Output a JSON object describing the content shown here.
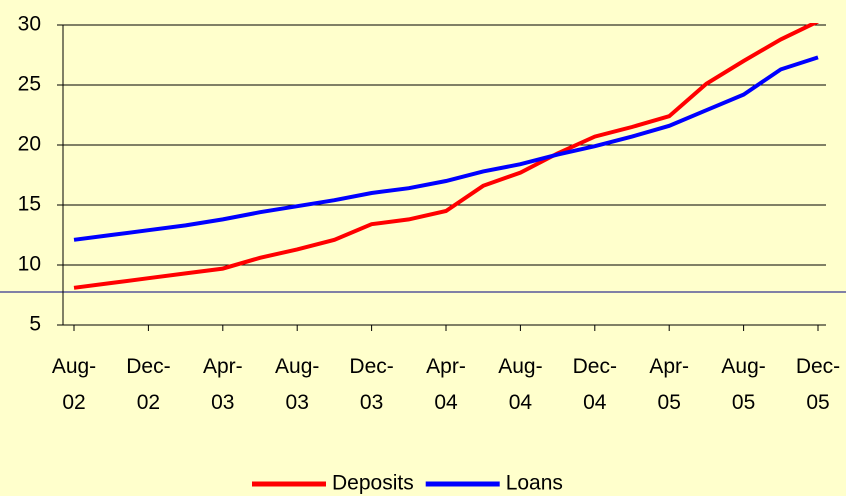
{
  "chart_data": {
    "type": "line",
    "categories": [
      "Aug-02",
      null,
      "Dec-02",
      null,
      "Apr-03",
      null,
      "Aug-03",
      null,
      "Dec-03",
      null,
      "Apr-04",
      null,
      "Aug-04",
      null,
      "Dec-04",
      null,
      "Apr-05",
      null,
      "Aug-05",
      null,
      "Dec-05"
    ],
    "series": [
      {
        "name": "Deposits",
        "color": "#ff0000",
        "values": [
          8.1,
          8.5,
          8.9,
          9.3,
          9.7,
          10.6,
          11.3,
          12.1,
          13.4,
          13.8,
          14.5,
          16.6,
          17.7,
          19.3,
          20.7,
          21.5,
          22.4,
          25.1,
          27.0,
          28.8,
          30.3
        ]
      },
      {
        "name": "Loans",
        "color": "#0000ff",
        "values": [
          12.1,
          12.5,
          12.9,
          13.3,
          13.8,
          14.4,
          14.9,
          15.4,
          16.0,
          16.4,
          17.0,
          17.8,
          18.4,
          19.2,
          19.9,
          20.7,
          21.6,
          22.9,
          24.2,
          26.3,
          27.3
        ]
      }
    ],
    "ylim": [
      5,
      30
    ],
    "yticks": [
      5,
      10,
      15,
      20,
      25,
      30
    ],
    "grid": true,
    "legend": "bottom"
  }
}
